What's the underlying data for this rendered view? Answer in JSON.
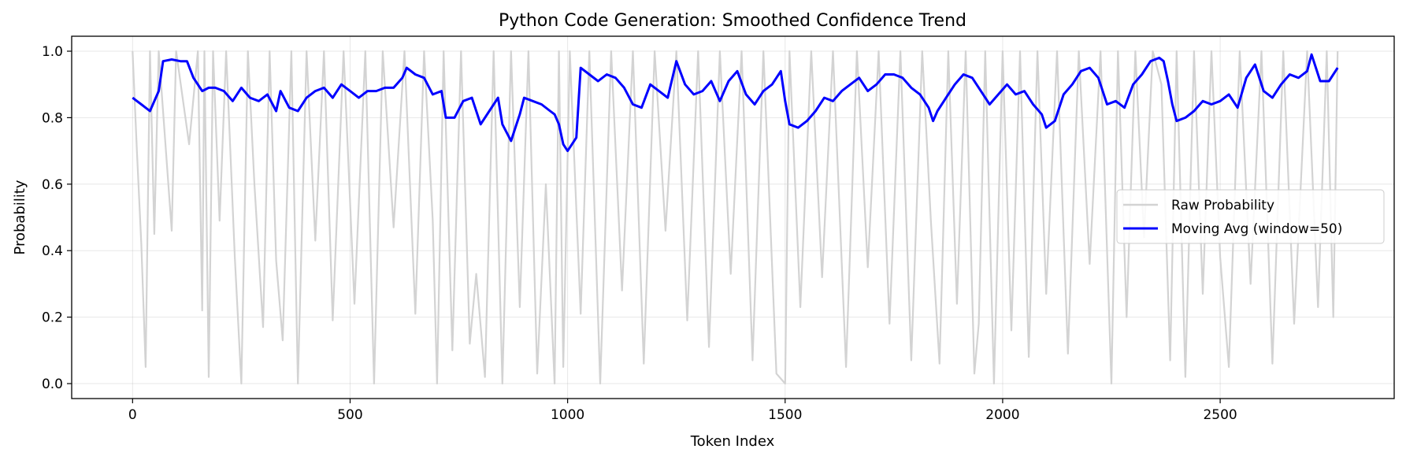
{
  "chart_data": {
    "type": "line",
    "title": "Python Code Generation: Smoothed Confidence Trend",
    "xlabel": "Token Index",
    "ylabel": "Probability",
    "xlim": [
      -140,
      2900
    ],
    "ylim": [
      -0.045,
      1.045
    ],
    "x_ticks": [
      0,
      500,
      1000,
      1500,
      2000,
      2500
    ],
    "x_tick_labels": [
      "0",
      "500",
      "1000",
      "1500",
      "2000",
      "2500"
    ],
    "y_ticks": [
      0.0,
      0.2,
      0.4,
      0.6,
      0.8,
      1.0
    ],
    "y_tick_labels": [
      "0.0",
      "0.2",
      "0.4",
      "0.6",
      "0.8",
      "1.0"
    ],
    "grid": true,
    "legend_position": "center-right",
    "series": [
      {
        "name": "Raw Probability",
        "color": "#d3d3d3",
        "approximate": true,
        "x": [
          0,
          10,
          20,
          30,
          40,
          50,
          60,
          90,
          100,
          130,
          150,
          160,
          165,
          175,
          185,
          200,
          215,
          235,
          250,
          265,
          280,
          300,
          315,
          330,
          345,
          365,
          380,
          400,
          420,
          440,
          460,
          485,
          510,
          535,
          555,
          575,
          600,
          625,
          650,
          670,
          690,
          700,
          715,
          735,
          755,
          775,
          790,
          810,
          830,
          850,
          870,
          890,
          910,
          930,
          950,
          970,
          980,
          990,
          1005,
          1030,
          1050,
          1075,
          1100,
          1125,
          1150,
          1175,
          1200,
          1225,
          1250,
          1275,
          1300,
          1325,
          1350,
          1375,
          1400,
          1425,
          1450,
          1480,
          1500,
          1510,
          1535,
          1560,
          1585,
          1610,
          1640,
          1665,
          1690,
          1715,
          1740,
          1765,
          1790,
          1815,
          1835,
          1855,
          1875,
          1895,
          1915,
          1935,
          1945,
          1960,
          1980,
          2000,
          2020,
          2040,
          2060,
          2080,
          2100,
          2125,
          2150,
          2175,
          2200,
          2225,
          2250,
          2265,
          2285,
          2305,
          2325,
          2345,
          2365,
          2385,
          2400,
          2420,
          2440,
          2460,
          2480,
          2500,
          2520,
          2545,
          2570,
          2595,
          2620,
          2645,
          2670,
          2700,
          2725,
          2745,
          2760,
          2770
        ],
        "y": [
          1.0,
          0.7,
          0.42,
          0.05,
          1.0,
          0.45,
          1.0,
          0.46,
          1.0,
          0.72,
          1.0,
          0.22,
          1.0,
          0.02,
          1.0,
          0.49,
          1.0,
          0.38,
          0.0,
          1.0,
          0.6,
          0.17,
          1.0,
          0.37,
          0.13,
          1.0,
          0.0,
          1.0,
          0.43,
          1.0,
          0.19,
          1.0,
          0.24,
          1.0,
          0.0,
          1.0,
          0.47,
          1.0,
          0.21,
          1.0,
          0.49,
          0.0,
          1.0,
          0.1,
          1.0,
          0.12,
          0.33,
          0.02,
          1.0,
          0.0,
          1.0,
          0.23,
          1.0,
          0.03,
          0.6,
          0.0,
          1.0,
          0.05,
          1.0,
          0.21,
          1.0,
          0.0,
          1.0,
          0.28,
          1.0,
          0.06,
          1.0,
          0.46,
          1.0,
          0.19,
          1.0,
          0.11,
          1.0,
          0.33,
          1.0,
          0.07,
          1.0,
          0.03,
          0.0,
          1.0,
          0.23,
          1.0,
          0.32,
          1.0,
          0.05,
          1.0,
          0.35,
          1.0,
          0.18,
          1.0,
          0.07,
          1.0,
          0.49,
          0.06,
          1.0,
          0.24,
          1.0,
          0.03,
          0.18,
          1.0,
          0.0,
          1.0,
          0.16,
          1.0,
          0.08,
          1.0,
          0.27,
          1.0,
          0.09,
          1.0,
          0.36,
          1.0,
          0.0,
          1.0,
          0.2,
          1.0,
          0.44,
          1.0,
          0.9,
          0.07,
          1.0,
          0.02,
          1.0,
          0.27,
          1.0,
          0.38,
          0.05,
          1.0,
          0.3,
          1.0,
          0.06,
          1.0,
          0.18,
          1.0,
          0.23,
          1.0,
          0.2,
          1.0
        ]
      },
      {
        "name": "Moving Avg (window=50)",
        "color": "#0000ff",
        "approximate": true,
        "x": [
          0,
          20,
          40,
          60,
          70,
          90,
          110,
          125,
          140,
          160,
          175,
          190,
          210,
          230,
          250,
          270,
          290,
          310,
          330,
          340,
          360,
          380,
          400,
          420,
          440,
          460,
          480,
          500,
          520,
          540,
          560,
          580,
          600,
          620,
          630,
          650,
          670,
          690,
          710,
          720,
          740,
          760,
          780,
          800,
          820,
          840,
          850,
          870,
          880,
          890,
          900,
          920,
          940,
          960,
          970,
          980,
          990,
          1000,
          1020,
          1030,
          1050,
          1070,
          1090,
          1110,
          1130,
          1150,
          1170,
          1190,
          1210,
          1230,
          1250,
          1270,
          1290,
          1310,
          1330,
          1350,
          1370,
          1390,
          1410,
          1430,
          1450,
          1470,
          1490,
          1500,
          1510,
          1530,
          1550,
          1570,
          1590,
          1610,
          1630,
          1650,
          1670,
          1690,
          1710,
          1730,
          1750,
          1770,
          1790,
          1810,
          1830,
          1840,
          1850,
          1870,
          1890,
          1910,
          1930,
          1950,
          1970,
          1990,
          2010,
          2030,
          2050,
          2070,
          2090,
          2100,
          2120,
          2140,
          2160,
          2180,
          2200,
          2220,
          2240,
          2260,
          2280,
          2300,
          2320,
          2340,
          2360,
          2370,
          2380,
          2390,
          2400,
          2420,
          2440,
          2460,
          2480,
          2500,
          2520,
          2540,
          2560,
          2580,
          2600,
          2620,
          2640,
          2660,
          2680,
          2700,
          2710,
          2730,
          2750,
          2770
        ],
        "y": [
          0.86,
          0.84,
          0.82,
          0.88,
          0.97,
          0.975,
          0.97,
          0.97,
          0.92,
          0.88,
          0.89,
          0.89,
          0.88,
          0.85,
          0.89,
          0.86,
          0.85,
          0.87,
          0.82,
          0.88,
          0.83,
          0.82,
          0.86,
          0.88,
          0.89,
          0.86,
          0.9,
          0.88,
          0.86,
          0.88,
          0.88,
          0.89,
          0.89,
          0.92,
          0.95,
          0.93,
          0.92,
          0.87,
          0.88,
          0.8,
          0.8,
          0.85,
          0.86,
          0.78,
          0.82,
          0.86,
          0.78,
          0.73,
          0.77,
          0.81,
          0.86,
          0.85,
          0.84,
          0.82,
          0.81,
          0.78,
          0.72,
          0.7,
          0.74,
          0.95,
          0.93,
          0.91,
          0.93,
          0.92,
          0.89,
          0.84,
          0.83,
          0.9,
          0.88,
          0.86,
          0.97,
          0.9,
          0.87,
          0.88,
          0.91,
          0.85,
          0.91,
          0.94,
          0.87,
          0.84,
          0.88,
          0.9,
          0.94,
          0.85,
          0.78,
          0.77,
          0.79,
          0.82,
          0.86,
          0.85,
          0.88,
          0.9,
          0.92,
          0.88,
          0.9,
          0.93,
          0.93,
          0.92,
          0.89,
          0.87,
          0.83,
          0.79,
          0.82,
          0.86,
          0.9,
          0.93,
          0.92,
          0.88,
          0.84,
          0.87,
          0.9,
          0.87,
          0.88,
          0.84,
          0.81,
          0.77,
          0.79,
          0.87,
          0.9,
          0.94,
          0.95,
          0.92,
          0.84,
          0.85,
          0.83,
          0.9,
          0.93,
          0.97,
          0.98,
          0.97,
          0.91,
          0.84,
          0.79,
          0.8,
          0.82,
          0.85,
          0.84,
          0.85,
          0.87,
          0.83,
          0.92,
          0.96,
          0.88,
          0.86,
          0.9,
          0.93,
          0.92,
          0.94,
          0.99,
          0.91,
          0.91,
          0.95
        ]
      }
    ]
  }
}
